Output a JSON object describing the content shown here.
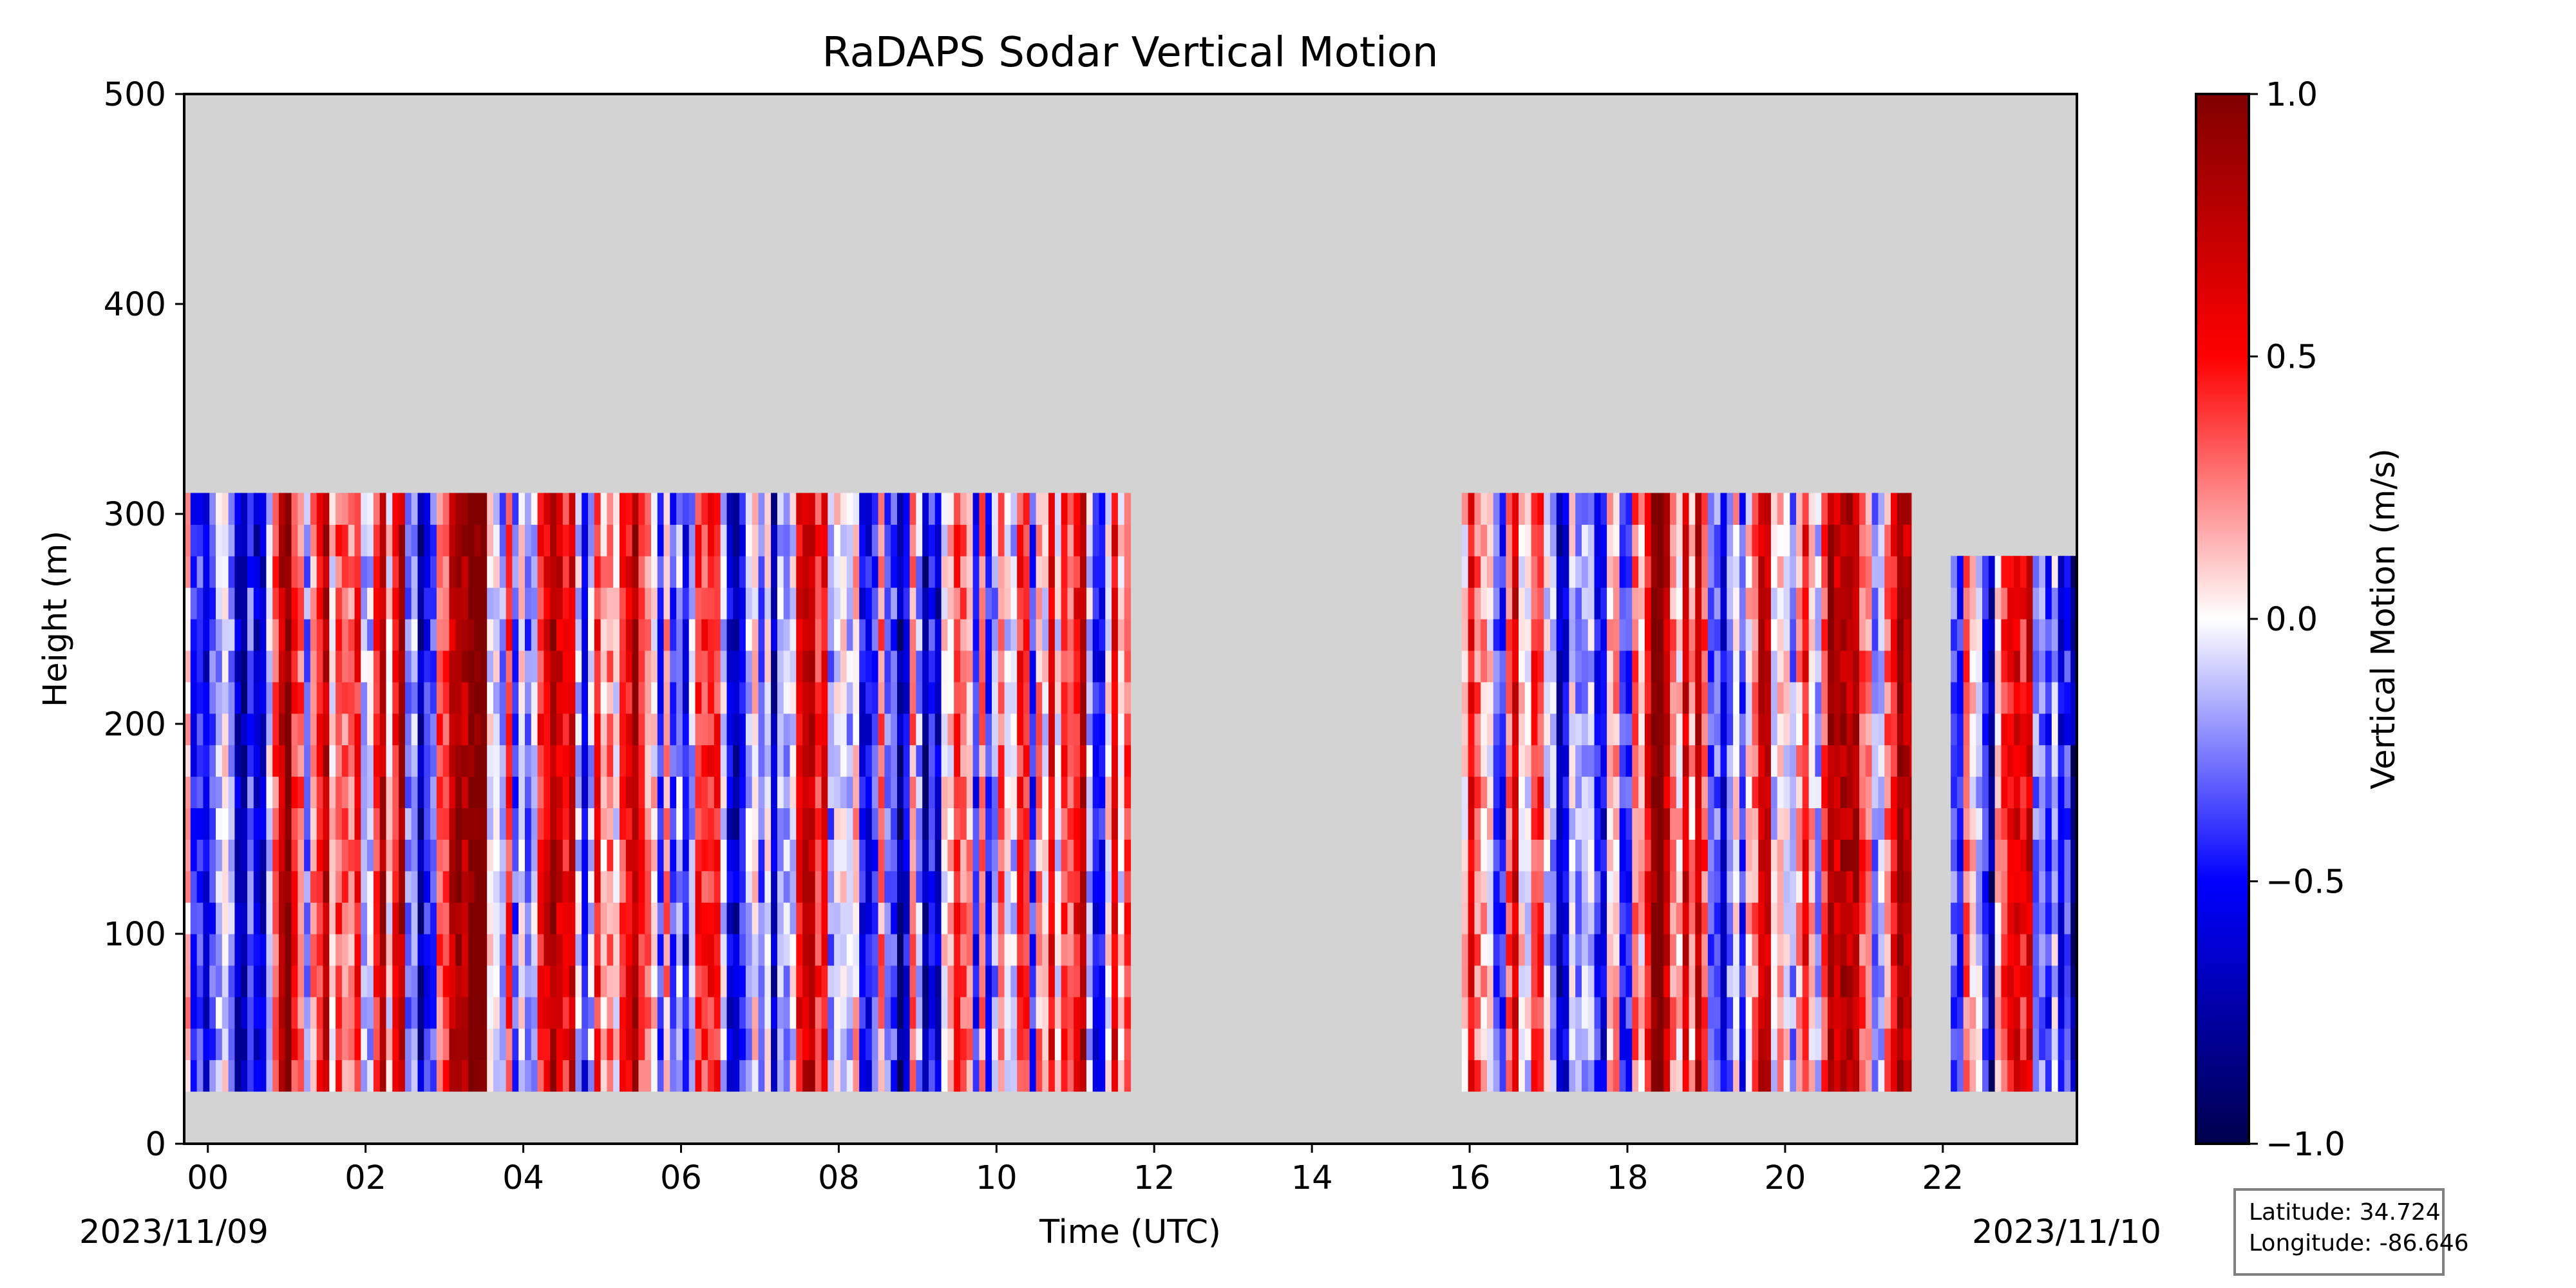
{
  "chart_data": {
    "type": "heatmap",
    "title": "RaDAPS Sodar Vertical Motion",
    "xlabel": "Time (UTC)",
    "ylabel": "Height (m)",
    "x_tick_labels": [
      "00",
      "02",
      "04",
      "06",
      "08",
      "10",
      "12",
      "14",
      "16",
      "18",
      "20",
      "22"
    ],
    "x_ticks_hours": [
      0,
      2,
      4,
      6,
      8,
      10,
      12,
      14,
      16,
      18,
      20,
      22
    ],
    "xlim_hours": [
      -0.3,
      23.7
    ],
    "y_tick_labels": [
      "0",
      "100",
      "200",
      "300",
      "400",
      "500"
    ],
    "y_ticks": [
      0,
      100,
      200,
      300,
      400,
      500
    ],
    "ylim": [
      0,
      500
    ],
    "start_date": "2023/11/09",
    "end_date": "2023/11/10",
    "missing_color": "#d3d3d3",
    "colorbar": {
      "label": "Vertical Motion (m/s)",
      "colormap": "seismic",
      "range": [
        -1.0,
        1.0
      ],
      "tick_values": [
        1.0,
        0.5,
        0.0,
        -0.5,
        -1.0
      ],
      "tick_labels": [
        "1.0",
        "0.5",
        "0.0",
        "−0.5",
        "−1.0"
      ],
      "colors": [
        "#00004c",
        "#0000ff",
        "#ffffff",
        "#ff0000",
        "#800000"
      ]
    },
    "data_segments": [
      {
        "start_hour": -0.3,
        "end_hour": 11.7,
        "bottom_m": 25,
        "top_m": 310
      },
      {
        "start_hour": 15.9,
        "end_hour": 21.6,
        "bottom_m": 25,
        "top_m": 310
      },
      {
        "start_hour": 22.1,
        "end_hour": 23.7,
        "bottom_m": 25,
        "top_m": 280
      }
    ],
    "grid": false
  },
  "location": {
    "latitude_label": "Latitude: 34.724",
    "longitude_label": "Longitude: -86.646"
  }
}
